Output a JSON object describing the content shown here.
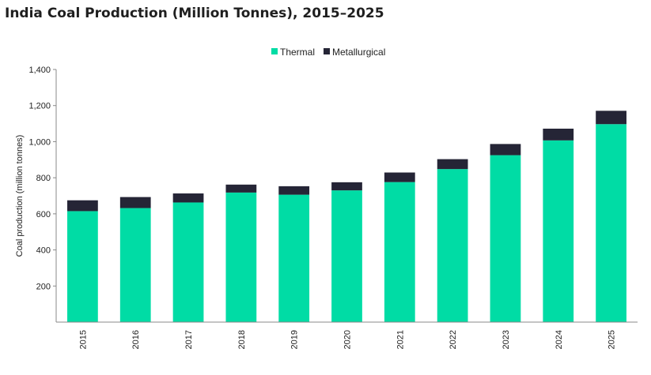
{
  "chart_data": {
    "type": "bar",
    "stacked": true,
    "title": "India Coal Production (Million Tonnes), 2015–2025",
    "xlabel": "",
    "ylabel": "Coal production (million tonnes)",
    "categories": [
      "2015",
      "2016",
      "2017",
      "2018",
      "2019",
      "2020",
      "2021",
      "2022",
      "2023",
      "2024",
      "2025"
    ],
    "series": [
      {
        "name": "Thermal",
        "color": "#00dca5",
        "values": [
          615,
          632,
          663,
          718,
          706,
          730,
          776,
          848,
          925,
          1007,
          1097
        ]
      },
      {
        "name": "Metallurgical",
        "color": "#252536",
        "values": [
          60,
          61,
          50,
          44,
          47,
          45,
          53,
          55,
          62,
          65,
          74
        ]
      }
    ],
    "ylim": [
      0,
      1400
    ],
    "yticks": [
      200,
      400,
      600,
      800,
      1000,
      1200,
      1400
    ],
    "ytick_labels": [
      "200",
      "400",
      "600",
      "800",
      "1,000",
      "1,200",
      "1,400"
    ],
    "legend_position": "top-center",
    "grid": false
  }
}
